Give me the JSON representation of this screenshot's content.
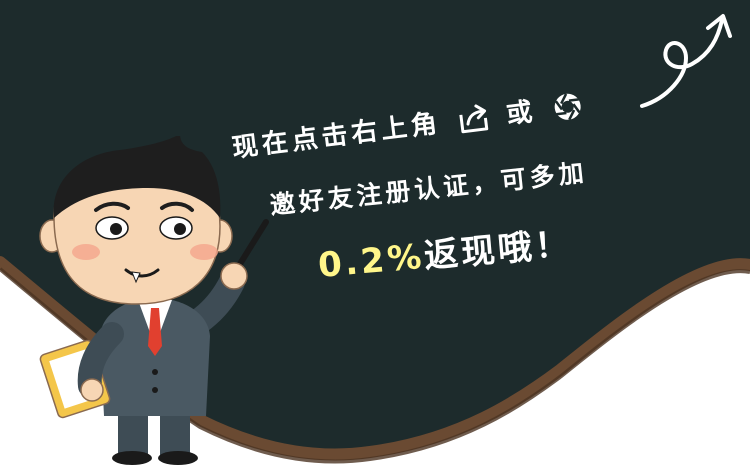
{
  "banner": {
    "line1_before": "现在点击右上角",
    "line1_middle": "或",
    "line2": "邀好友注册认证，可多加",
    "line3_amount": "0.2%",
    "line3_rest": "返现哦！"
  },
  "icons": {
    "share": "share-icon",
    "aperture": "aperture-icon",
    "arrow": "curly-arrow-icon"
  },
  "colors": {
    "chalkboard": "#1d2b2c",
    "frame": "#6a4a32",
    "text": "#ffffff",
    "highlight": "#fff68a"
  }
}
